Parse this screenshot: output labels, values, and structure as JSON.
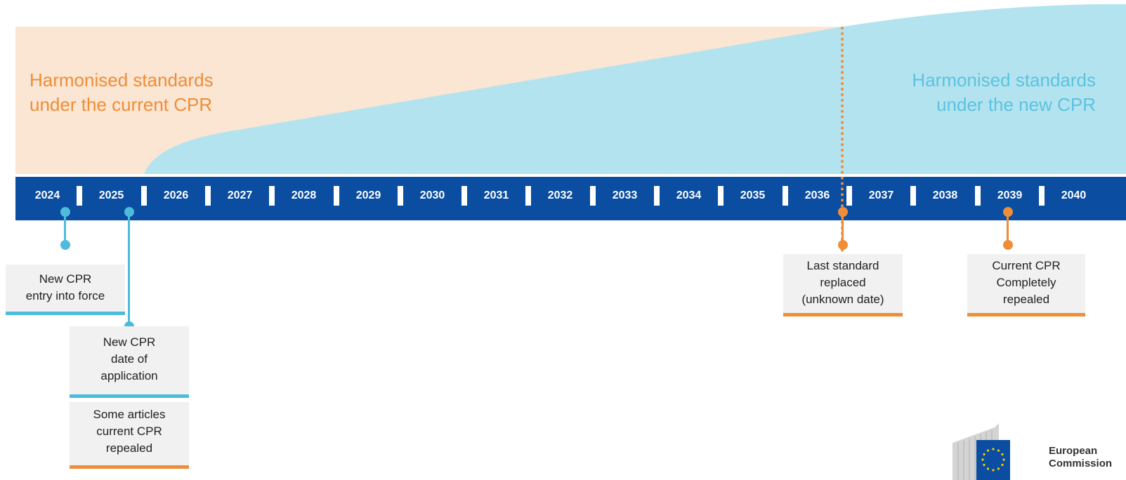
{
  "regions": {
    "current_cpr": {
      "lines": [
        "Harmonised standards",
        "under the current CPR"
      ]
    },
    "new_cpr": {
      "lines": [
        "Harmonised standards",
        "under the new CPR"
      ]
    }
  },
  "timeline": {
    "years": [
      "2024",
      "2025",
      "2026",
      "2027",
      "2028",
      "2029",
      "2030",
      "2031",
      "2032",
      "2033",
      "2034",
      "2035",
      "2036",
      "2037",
      "2038",
      "2039",
      "2040"
    ]
  },
  "milestones": [
    {
      "year": "2024",
      "lines": [
        "New CPR",
        "entry into force"
      ],
      "color": "#4dbcdc"
    },
    {
      "year": "2025",
      "lines": [
        "New CPR",
        "date of",
        "application"
      ],
      "color": "#4dbcdc"
    },
    {
      "year": "2025",
      "lines": [
        "Some articles",
        "current CPR",
        "repealed"
      ],
      "color": "#ef8e36"
    },
    {
      "year": "2036",
      "lines": [
        "Last standard",
        "replaced",
        "(unknown date)"
      ],
      "color": "#ef8e36"
    },
    {
      "year": "2039",
      "lines": [
        "Current CPR",
        "Completely",
        "repealed"
      ],
      "color": "#ef8e36"
    }
  ],
  "logo": {
    "lines": [
      "European",
      "Commission"
    ]
  },
  "colors": {
    "bar": "#0b4da0",
    "current_area": "#fbe5d3",
    "new_area": "#b3e3ef",
    "orange": "#ef8e36",
    "cyan": "#4dbcdc"
  }
}
